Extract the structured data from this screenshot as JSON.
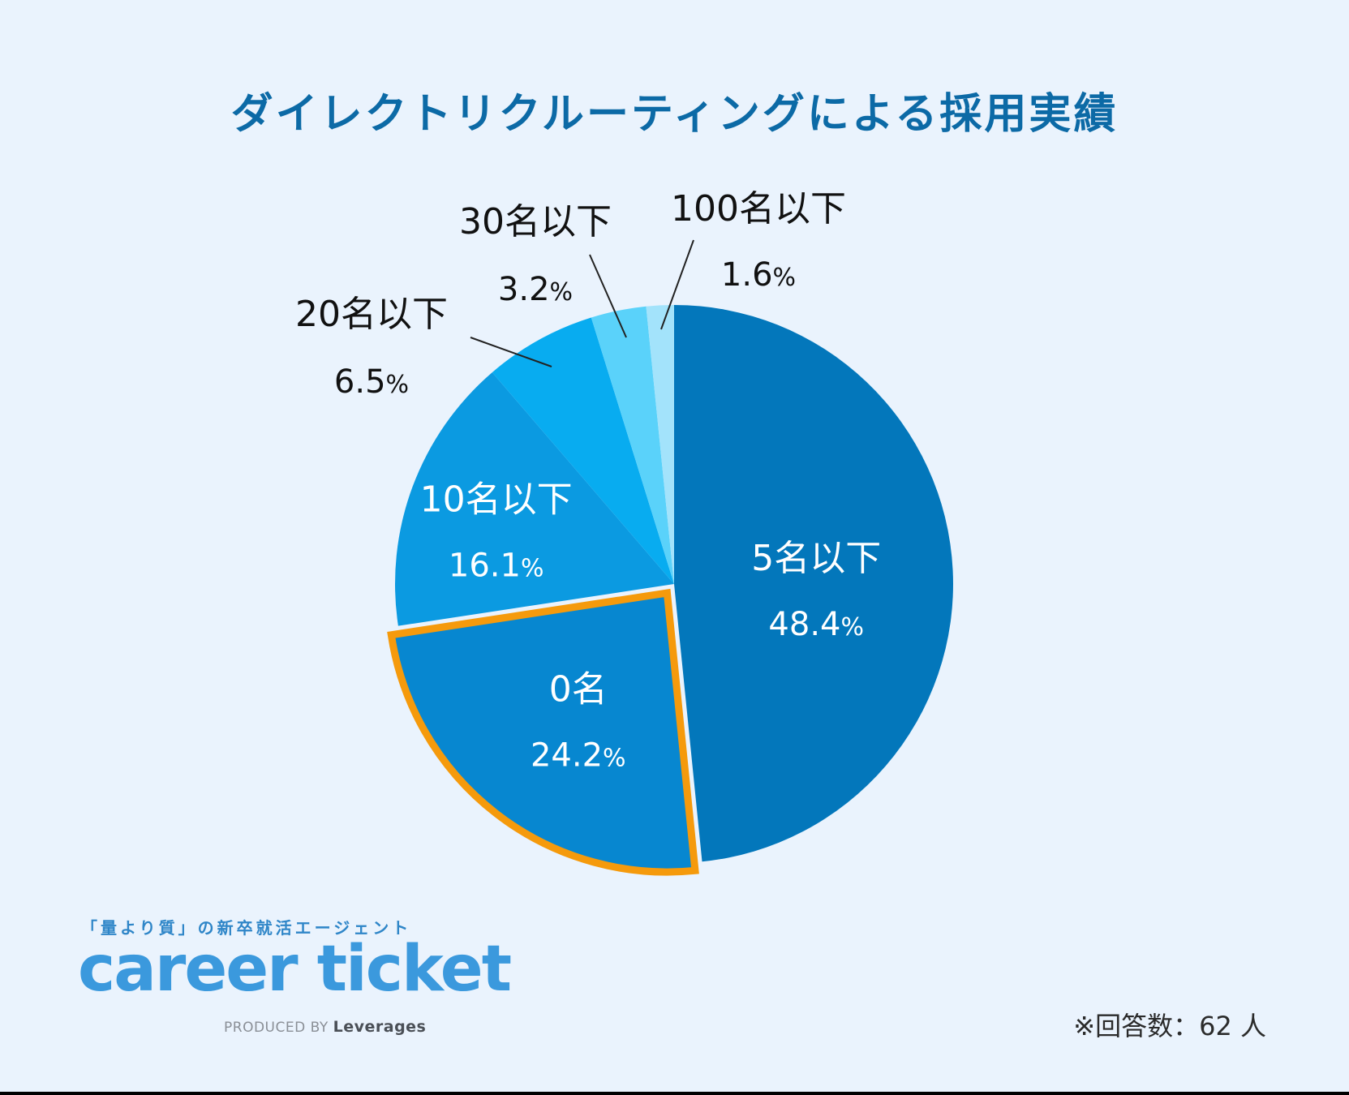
{
  "title": "ダイレクトリクルーティングによる採用実績",
  "chart_data": {
    "type": "pie",
    "title": "ダイレクトリクルーティングによる採用実績",
    "start": "12 o'clock, clockwise",
    "highlighted": "0名",
    "slices": [
      {
        "label": "5名以下",
        "value": 48.4,
        "display": "48.4%",
        "color": "#0377bb",
        "label_position": "inside"
      },
      {
        "label": "0名",
        "value": 24.2,
        "display": "24.2%",
        "color": "#0787d0",
        "label_position": "inside"
      },
      {
        "label": "10名以下",
        "value": 16.1,
        "display": "16.1%",
        "color": "#0b9ae1",
        "label_position": "inside"
      },
      {
        "label": "20名以下",
        "value": 6.5,
        "display": "6.5%",
        "color": "#08acf0",
        "label_position": "outside"
      },
      {
        "label": "30名以下",
        "value": 3.2,
        "display": "3.2%",
        "color": "#5ad2fa",
        "label_position": "outside"
      },
      {
        "label": "100名以下",
        "value": 1.6,
        "display": "1.6%",
        "color": "#a3e3fb",
        "label_position": "outside"
      }
    ],
    "highlight_color": "#f59a0c"
  },
  "logo": {
    "tagline": "「量より質」の新卒就活エージェント",
    "wordmark": "career ticket",
    "produced_by": "PRODUCED BY",
    "brand": "Leverages"
  },
  "footnote": "※回答数：62 人"
}
